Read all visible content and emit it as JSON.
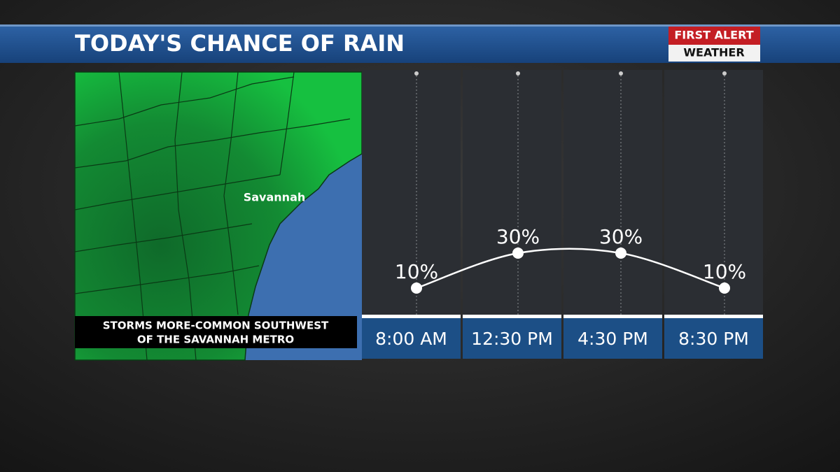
{
  "header": {
    "logo_top": "FIRST ALERT",
    "logo_bottom": "WEATHER"
  },
  "map": {
    "city": "Savannah",
    "caption": [
      "STORMS MORE-COMMON SOUTHWEST",
      "OF THE SAVANNAH METRO"
    ]
  },
  "chart_data": {
    "type": "line",
    "title": "TODAY'S CHANCE OF RAIN",
    "categories": [
      "8:00 AM",
      "12:30 PM",
      "4:30 PM",
      "8:30 PM"
    ],
    "values": [
      10,
      30,
      30,
      10
    ],
    "value_labels": [
      "10%",
      "30%",
      "30%",
      "10%"
    ],
    "color": "#ffffff"
  }
}
